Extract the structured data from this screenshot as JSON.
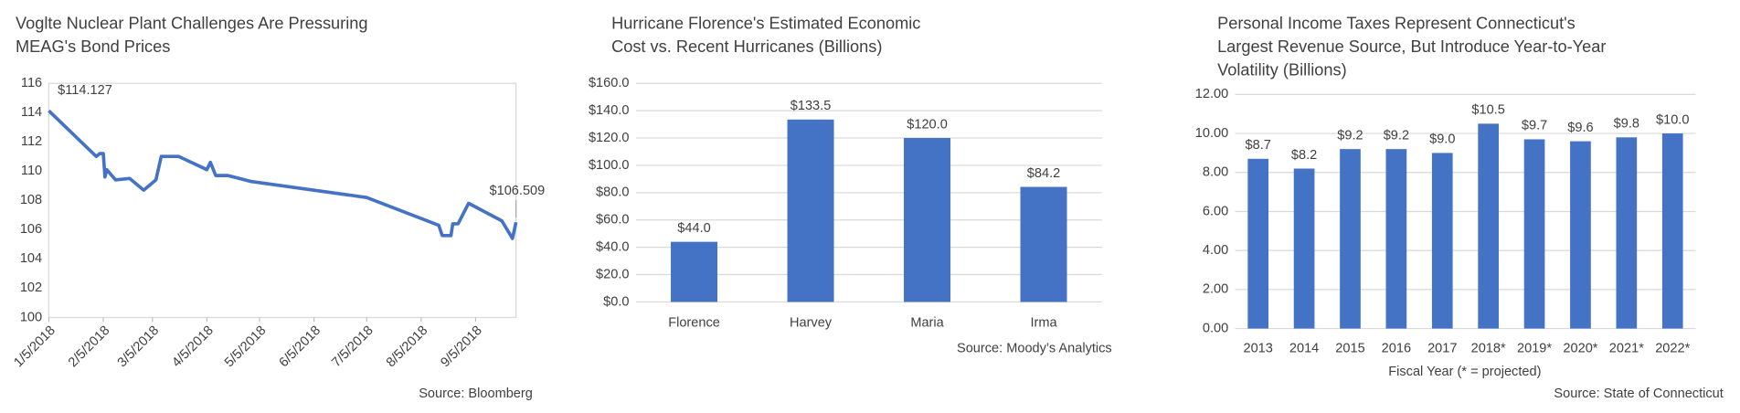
{
  "chart_data": [
    {
      "type": "line",
      "title": [
        "Voglte Nuclear Plant Challenges Are Pressuring",
        "MEAG's Bond Prices"
      ],
      "source": "Source: Bloomberg",
      "color": "#4472c4",
      "grid": false,
      "x": [
        "2018-01-05",
        "2018-02-01",
        "2018-02-03",
        "2018-02-05",
        "2018-02-06",
        "2018-02-07",
        "2018-02-12",
        "2018-02-20",
        "2018-02-28",
        "2018-03-07",
        "2018-03-10",
        "2018-03-20",
        "2018-04-05",
        "2018-04-07",
        "2018-04-10",
        "2018-04-17",
        "2018-04-30",
        "2018-07-05",
        "2018-08-15",
        "2018-08-17",
        "2018-08-22",
        "2018-08-23",
        "2018-08-26",
        "2018-09-01",
        "2018-09-20",
        "2018-09-26",
        "2018-09-28"
      ],
      "values": [
        114.127,
        111.0,
        111.2,
        111.2,
        109.6,
        110.1,
        109.4,
        109.5,
        108.7,
        109.4,
        111.0,
        111.0,
        110.1,
        110.6,
        109.7,
        109.7,
        109.3,
        108.2,
        106.3,
        105.6,
        105.6,
        106.4,
        106.4,
        107.8,
        106.6,
        105.4,
        106.509
      ],
      "annotations": [
        "$114.127",
        "$106.509"
      ],
      "xlim": [
        "2018-01-05",
        "2018-09-28"
      ],
      "xticks": [
        {
          "value": "2018-01-05",
          "label": "1/5/2018"
        },
        {
          "value": "2018-02-05",
          "label": "2/5/2018"
        },
        {
          "value": "2018-03-05",
          "label": "3/5/2018"
        },
        {
          "value": "2018-04-05",
          "label": "4/5/2018"
        },
        {
          "value": "2018-05-05",
          "label": "5/5/2018"
        },
        {
          "value": "2018-06-05",
          "label": "6/5/2018"
        },
        {
          "value": "2018-07-05",
          "label": "7/5/2018"
        },
        {
          "value": "2018-08-05",
          "label": "8/5/2018"
        },
        {
          "value": "2018-09-05",
          "label": "9/5/2018"
        }
      ],
      "ylim": [
        100,
        116
      ],
      "yticks": [
        100,
        102,
        104,
        106,
        108,
        110,
        112,
        114,
        116
      ]
    },
    {
      "type": "bar",
      "title": [
        "Hurricane Florence's Estimated Economic",
        "Cost vs. Recent Hurricanes (Billions)"
      ],
      "source": "Source: Moody’s Analytics",
      "color": "#4472c4",
      "grid": true,
      "categories": [
        "Florence",
        "Harvey",
        "Maria",
        "Irma"
      ],
      "values": [
        44.0,
        133.5,
        120.0,
        84.2
      ],
      "value_labels": [
        "$44.0",
        "$133.5",
        "$120.0",
        "$84.2"
      ],
      "ylim": [
        0,
        160
      ],
      "yticks": [
        {
          "value": 0,
          "label": "$0.0"
        },
        {
          "value": 20,
          "label": "$20.0"
        },
        {
          "value": 40,
          "label": "$40.0"
        },
        {
          "value": 60,
          "label": "$60.0"
        },
        {
          "value": 80,
          "label": "$80.0"
        },
        {
          "value": 100,
          "label": "$100.0"
        },
        {
          "value": 120,
          "label": "$120.0"
        },
        {
          "value": 140,
          "label": "$140.0"
        },
        {
          "value": 160,
          "label": "$160.0"
        }
      ]
    },
    {
      "type": "bar",
      "title": [
        "Personal Income Taxes Represent Connecticut's",
        "Largest Revenue Source, But Introduce Year-to-Year",
        "Volatility (Billions)"
      ],
      "source": "Source: State of Connecticut",
      "x_label": "Fiscal Year (* = projected)",
      "color": "#4472c4",
      "grid": true,
      "categories": [
        "2013",
        "2014",
        "2015",
        "2016",
        "2017",
        "2018*",
        "2019*",
        "2020*",
        "2021*",
        "2022*"
      ],
      "values": [
        8.7,
        8.2,
        9.2,
        9.2,
        9.0,
        10.5,
        9.7,
        9.6,
        9.8,
        10.0
      ],
      "value_labels": [
        "$8.7",
        "$8.2",
        "$9.2",
        "$9.2",
        "$9.0",
        "$10.5",
        "$9.7",
        "$9.6",
        "$9.8",
        "$10.0"
      ],
      "ylim": [
        0,
        12
      ],
      "yticks": [
        {
          "value": 0,
          "label": "0.00"
        },
        {
          "value": 2,
          "label": "2.00"
        },
        {
          "value": 4,
          "label": "4.00"
        },
        {
          "value": 6,
          "label": "6.00"
        },
        {
          "value": 8,
          "label": "8.00"
        },
        {
          "value": 10,
          "label": "10.00"
        },
        {
          "value": 12,
          "label": "12.00"
        }
      ]
    }
  ]
}
